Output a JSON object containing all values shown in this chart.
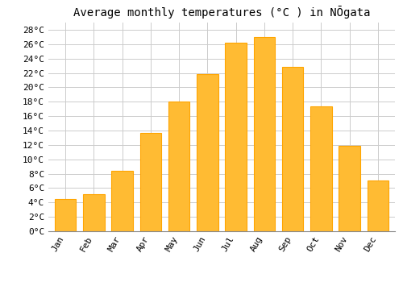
{
  "title": "Average monthly temperatures (°C ) in NŌgata",
  "months": [
    "Jan",
    "Feb",
    "Mar",
    "Apr",
    "May",
    "Jun",
    "Jul",
    "Aug",
    "Sep",
    "Oct",
    "Nov",
    "Dec"
  ],
  "temperatures": [
    4.5,
    5.1,
    8.4,
    13.7,
    18.0,
    21.8,
    26.2,
    27.0,
    22.8,
    17.3,
    11.9,
    7.0
  ],
  "bar_color": "#FFBB33",
  "bar_edge_color": "#FFA500",
  "background_color": "#FFFFFF",
  "grid_color": "#CCCCCC",
  "ylim": [
    0,
    29
  ],
  "ytick_step": 2,
  "title_fontsize": 10,
  "tick_fontsize": 8,
  "font_family": "monospace"
}
